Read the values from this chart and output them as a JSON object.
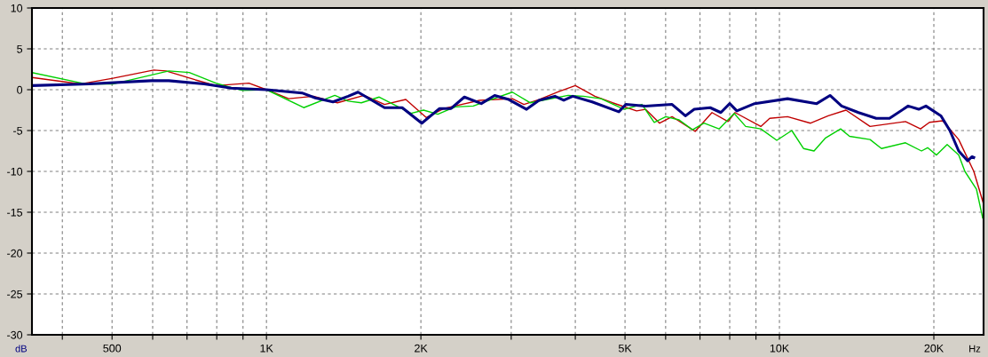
{
  "chart_data": {
    "type": "line",
    "xlabel": "Hz",
    "ylabel": "dB",
    "log": "x",
    "grid": true,
    "line_style": "solid",
    "marker": "none",
    "legend": false,
    "xlim": [
      349,
      25000
    ],
    "ylim": [
      -30,
      10
    ],
    "xticks": [
      {
        "value": 400,
        "label": null
      },
      500,
      {
        "value": 600,
        "label": null
      },
      {
        "value": 700,
        "label": null
      },
      {
        "value": 800,
        "label": null
      },
      {
        "value": 900,
        "label": null
      },
      {
        "value": 1000,
        "label": "1K"
      },
      {
        "value": 2000,
        "label": "2K"
      },
      {
        "value": 3000,
        "label": null
      },
      {
        "value": 4000,
        "label": null
      },
      {
        "value": 5000,
        "label": "5K"
      },
      {
        "value": 6000,
        "label": null
      },
      {
        "value": 7000,
        "label": null
      },
      {
        "value": 8000,
        "label": null
      },
      {
        "value": 9000,
        "label": null
      },
      {
        "value": 10000,
        "label": "10K"
      },
      {
        "value": 20000,
        "label": "20K"
      }
    ],
    "yticks": [
      -30,
      -25,
      -20,
      -15,
      -10,
      -5,
      0,
      5,
      10
    ],
    "series": [
      {
        "color": "#c00000",
        "x": [
          349,
          433,
          502,
          603,
          637,
          727,
          797,
          924,
          1000,
          1105,
          1235,
          1375,
          1550,
          1699,
          1869,
          2048,
          2218,
          2602,
          3015,
          3176,
          3398,
          3723,
          4001,
          4367,
          4729,
          5266,
          5482,
          5840,
          6176,
          6850,
          7388,
          7937,
          8193,
          9199,
          9572,
          10370,
          11500,
          12450,
          13480,
          15020,
          17610,
          18840,
          19610,
          20810,
          22360,
          23930,
          25000
        ],
        "values": [
          1.5,
          0.7,
          1.4,
          2.4,
          2.3,
          1.2,
          0.5,
          0.8,
          0,
          -1.1,
          -0.8,
          -1.6,
          -0.7,
          -1.8,
          -1.2,
          -3.4,
          -2.3,
          -1.3,
          -1.1,
          -1.8,
          -1.2,
          -0.2,
          0.5,
          -0.8,
          -1.6,
          -2.6,
          -2.4,
          -4.1,
          -3.3,
          -5.1,
          -2.8,
          -3.9,
          -2.8,
          -4.5,
          -3.5,
          -3.3,
          -4.1,
          -3.2,
          -2.5,
          -4.5,
          -3.9,
          -4.8,
          -4.0,
          -3.8,
          -6.1,
          -10.0,
          -14.0
        ]
      },
      {
        "color": "#00d000",
        "x": [
          349,
          445,
          502,
          645,
          707,
          797,
          898,
          1000,
          1182,
          1359,
          1443,
          1531,
          1659,
          1914,
          2024,
          2158,
          2336,
          2530,
          2741,
          3015,
          3265,
          3874,
          4147,
          4490,
          4980,
          5394,
          5701,
          6005,
          6375,
          6769,
          7127,
          7626,
          8162,
          8595,
          9199,
          9882,
          10570,
          11140,
          11680,
          12300,
          13160,
          13700,
          15020,
          15810,
          17610,
          18920,
          19450,
          20240,
          21230,
          22360,
          22990,
          24220,
          24900
        ],
        "values": [
          2.1,
          0.7,
          0.7,
          2.3,
          2.1,
          0.8,
          -0.1,
          0,
          -2.2,
          -0.7,
          -1.4,
          -1.6,
          -0.9,
          -2.9,
          -2.5,
          -3.0,
          -2.1,
          -2.0,
          -1.2,
          -0.3,
          -1.6,
          -0.7,
          -0.8,
          -1.1,
          -2.4,
          -1.8,
          -4.0,
          -3.3,
          -3.7,
          -4.9,
          -4.1,
          -4.8,
          -2.9,
          -4.5,
          -4.8,
          -6.2,
          -5.0,
          -7.2,
          -7.5,
          -5.9,
          -4.8,
          -5.7,
          -6.1,
          -7.2,
          -6.5,
          -7.5,
          -7.1,
          -8.0,
          -6.7,
          -8.0,
          -10.0,
          -12.2,
          -15.7
        ]
      },
      {
        "color": "#000080",
        "x": [
          349,
          451,
          596,
          645,
          756,
          853,
          1000,
          1173,
          1245,
          1348,
          1443,
          1508,
          1699,
          1839,
          2008,
          2175,
          2290,
          2431,
          2623,
          2785,
          2967,
          3214,
          3398,
          3650,
          3798,
          3954,
          4315,
          4863,
          5020,
          5482,
          6176,
          6555,
          6823,
          7329,
          7687,
          8000,
          8260,
          8945,
          10370,
          11820,
          12550,
          13220,
          14260,
          15440,
          16390,
          17820,
          18690,
          19300,
          20650,
          21490,
          22360,
          23270,
          23740,
          23930
        ],
        "values": [
          0.5,
          0.7,
          1.1,
          1.1,
          0.7,
          0.2,
          0,
          -0.4,
          -1.0,
          -1.5,
          -0.8,
          -0.3,
          -2.2,
          -2.2,
          -4.1,
          -2.3,
          -2.3,
          -0.9,
          -1.7,
          -0.7,
          -1.2,
          -2.4,
          -1.3,
          -0.8,
          -1.3,
          -0.8,
          -1.5,
          -2.7,
          -1.8,
          -2.0,
          -1.8,
          -3.2,
          -2.4,
          -2.2,
          -2.8,
          -1.7,
          -2.6,
          -1.7,
          -1.1,
          -1.7,
          -0.7,
          -2.0,
          -2.8,
          -3.5,
          -3.5,
          -2.0,
          -2.4,
          -2.0,
          -3.2,
          -5.0,
          -7.5,
          -8.7,
          -8.2,
          -8.3
        ]
      }
    ]
  }
}
